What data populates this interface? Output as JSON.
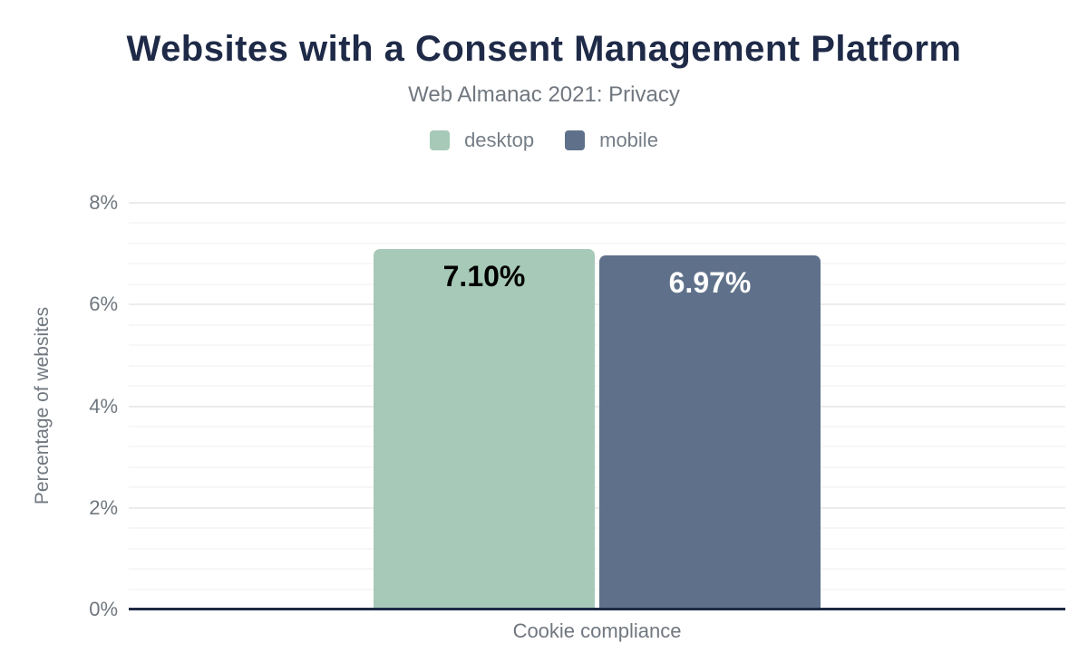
{
  "header": {
    "title": "Websites with a Consent Management Platform",
    "subtitle": "Web Almanac 2021: Privacy"
  },
  "legend": {
    "items": [
      {
        "label": "desktop",
        "color": "#a7c9b7"
      },
      {
        "label": "mobile",
        "color": "#5f718a"
      }
    ]
  },
  "colors": {
    "title_text": "#1e2a47",
    "muted_text": "#70777f",
    "axis_baseline": "#1f2a44",
    "major_gridline": "#ececec",
    "minor_gridline": "#f7f7f7",
    "desktop_bar": "#a7c9b7",
    "mobile_bar": "#5f718a"
  },
  "chart_data": {
    "type": "bar",
    "title": "Websites with a Consent Management Platform",
    "subtitle": "Web Almanac 2021: Privacy",
    "categories": [
      "Cookie compliance"
    ],
    "series": [
      {
        "name": "desktop",
        "values": [
          7.1
        ],
        "data_labels": [
          "7.10%"
        ],
        "color": "#a7c9b7",
        "label_color": "#000000"
      },
      {
        "name": "mobile",
        "values": [
          6.97
        ],
        "data_labels": [
          "6.97%"
        ],
        "color": "#5f718a",
        "label_color": "#ffffff"
      }
    ],
    "xlabel": "Cookie compliance",
    "ylabel": "Percentage of websites",
    "ylim": [
      0,
      8
    ],
    "yticks": [
      0,
      2,
      4,
      6,
      8
    ],
    "ytick_labels": [
      "0%",
      "2%",
      "4%",
      "6%",
      "8%"
    ],
    "minor_gridline_step": 0.4,
    "grid": true,
    "legend_position": "top"
  }
}
